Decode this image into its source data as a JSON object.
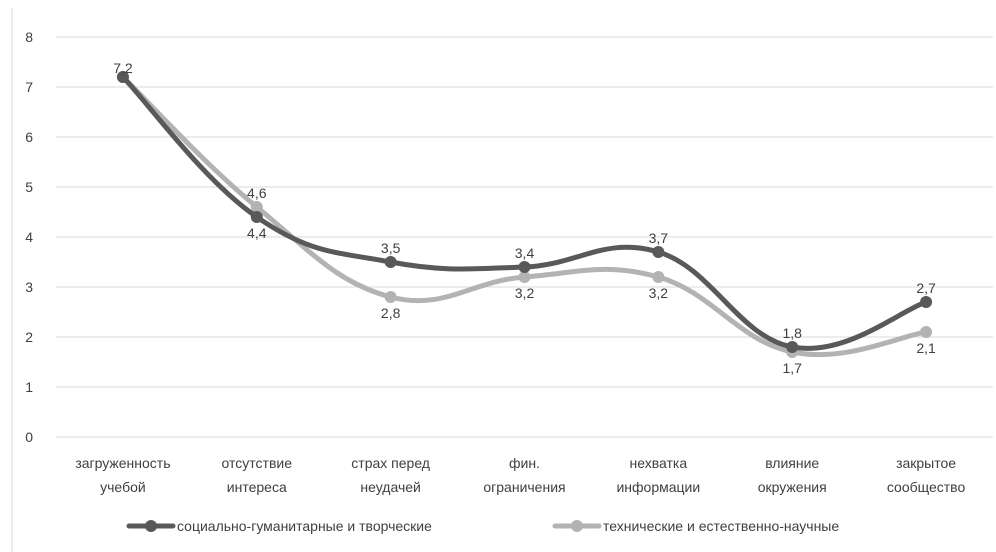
{
  "chart_data": {
    "type": "line",
    "categories": [
      [
        "загруженность",
        "учебой"
      ],
      [
        "отсутствие",
        "интереса"
      ],
      [
        "страх перед",
        "неудачей"
      ],
      [
        "фин.",
        "ограничения"
      ],
      [
        "нехватка",
        "информации"
      ],
      [
        "влияние",
        "окружения"
      ],
      [
        "закрытое",
        "сообщество"
      ]
    ],
    "ylim": [
      0,
      8
    ],
    "yticks": [
      0,
      1,
      2,
      3,
      4,
      5,
      6,
      7,
      8
    ],
    "grid": true,
    "legend_position": "bottom",
    "series": [
      {
        "name": "социально-гуманитарные и творческие",
        "values": [
          7.2,
          4.4,
          3.5,
          3.4,
          3.7,
          1.8,
          2.7
        ],
        "labels": [
          "7,2",
          "4,4",
          "3,5",
          "3,4",
          "3,7",
          "1,8",
          "2,7"
        ],
        "color": "#595959"
      },
      {
        "name": "технические и естественно-научные",
        "values": [
          7.2,
          4.6,
          2.8,
          3.2,
          3.2,
          1.7,
          2.1
        ],
        "labels": [
          "7,2",
          "4,6",
          "2,8",
          "3,2",
          "3,2",
          "1,7",
          "2,1"
        ],
        "color": "#b3b3b3"
      }
    ]
  }
}
